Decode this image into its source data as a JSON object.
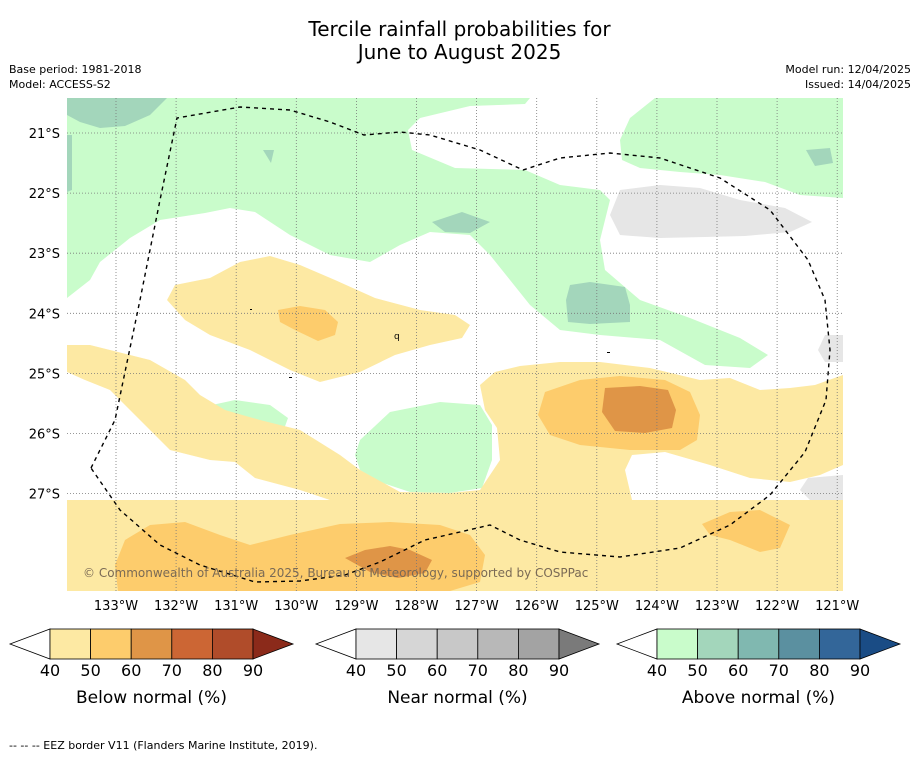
{
  "title": {
    "line1": "Tercile rainfall probabilities for",
    "line2": "June to August 2025"
  },
  "header_left": {
    "base_period": "Base period: 1981-2018",
    "model": "Model: ACCESS-S2"
  },
  "header_right": {
    "model_run": "Model run: 12/04/2025",
    "issued": "Issued: 14/04/2025"
  },
  "map": {
    "lat_labels": [
      "21°S",
      "22°S",
      "23°S",
      "24°S",
      "25°S",
      "26°S",
      "27°S"
    ],
    "lon_labels": [
      "133°W",
      "132°W",
      "131°W",
      "130°W",
      "129°W",
      "128°W",
      "127°W",
      "126°W",
      "125°W",
      "124°W",
      "123°W",
      "122°W",
      "121°W"
    ],
    "copyright": "© Commonwealth of Australia 2025, Bureau of Meteorology, supported by COSPPac",
    "stray_label": "q",
    "colors": {
      "below_40": "#fde9a3",
      "below_50": "#fdcc6c",
      "below_60": "#df9547",
      "near_40": "#e6e6e6",
      "above_40": "#c9fccb",
      "above_50": "#a3d6bb"
    }
  },
  "colorbars": [
    {
      "title": "Below normal (%)",
      "ticks": [
        "40",
        "50",
        "60",
        "70",
        "80",
        "90"
      ],
      "colors": [
        "#ffffff",
        "#fde9a3",
        "#fdcc6c",
        "#df9547",
        "#cc6634",
        "#b04c2a",
        "#8b2a1a"
      ]
    },
    {
      "title": "Near normal (%)",
      "ticks": [
        "40",
        "50",
        "60",
        "70",
        "80",
        "90"
      ],
      "colors": [
        "#ffffff",
        "#e6e6e6",
        "#d6d6d6",
        "#c8c8c8",
        "#b8b8b8",
        "#a3a3a3",
        "#7a7a7a"
      ]
    },
    {
      "title": "Above normal (%)",
      "ticks": [
        "40",
        "50",
        "60",
        "70",
        "80",
        "90"
      ],
      "colors": [
        "#ffffff",
        "#c9fccb",
        "#a3d6bb",
        "#80b8b0",
        "#5b90a0",
        "#336699",
        "#1a4c85"
      ]
    }
  ],
  "footnote": "--  --  -- EEZ border V11 (Flanders Marine Institute, 2019)."
}
